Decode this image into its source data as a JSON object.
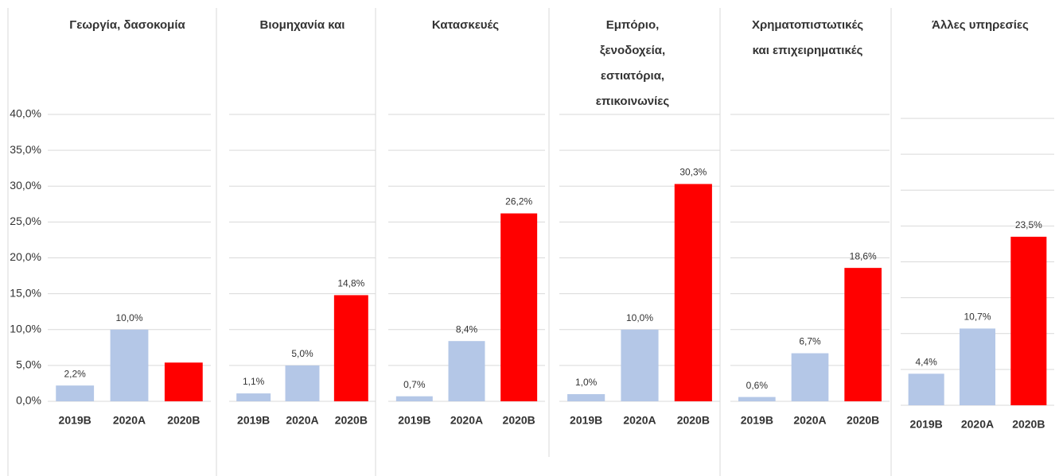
{
  "chart_data": [
    {
      "type": "bar",
      "title": [
        "Γεωργία, δασοκομία"
      ],
      "categories": [
        "2019B",
        "2020A",
        "2020B"
      ],
      "values": [
        2.2,
        10.0,
        5.4
      ],
      "value_labels": [
        "2,2%",
        "10,0%",
        null
      ],
      "colors": [
        "#b4c7e7",
        "#b4c7e7",
        "#ff0000"
      ],
      "ylim": [
        0,
        40
      ],
      "yticks": [
        {
          "value": 0,
          "label": "0,0%"
        },
        {
          "value": 5,
          "label": "5,0%"
        },
        {
          "value": 10,
          "label": "10,0%"
        },
        {
          "value": 15,
          "label": "15,0%"
        },
        {
          "value": 20,
          "label": "20,0%"
        },
        {
          "value": 25,
          "label": "25,0%"
        },
        {
          "value": 30,
          "label": "30,0%"
        },
        {
          "value": 35,
          "label": "35,0%"
        },
        {
          "value": 40,
          "label": "40,0%"
        }
      ],
      "grid": true
    },
    {
      "type": "bar",
      "title": [
        "Βιομηχανία και"
      ],
      "categories": [
        "2019B",
        "2020A",
        "2020B"
      ],
      "values": [
        1.1,
        5.0,
        14.8
      ],
      "value_labels": [
        "1,1%",
        "5,0%",
        "14,8%"
      ],
      "colors": [
        "#b4c7e7",
        "#b4c7e7",
        "#ff0000"
      ],
      "ylim": [
        0,
        40
      ],
      "yticks": [
        0,
        5,
        10,
        15,
        20,
        25,
        30,
        35,
        40
      ],
      "grid": true
    },
    {
      "type": "bar",
      "title": [
        "Κατασκευές"
      ],
      "categories": [
        "2019B",
        "2020A",
        "2020B"
      ],
      "values": [
        0.7,
        8.4,
        26.2
      ],
      "value_labels": [
        "0,7%",
        "8,4%",
        "26,2%"
      ],
      "colors": [
        "#b4c7e7",
        "#b4c7e7",
        "#ff0000"
      ],
      "ylim": [
        0,
        40
      ],
      "yticks": [
        0,
        5,
        10,
        15,
        20,
        25,
        30,
        35,
        40
      ],
      "grid": true
    },
    {
      "type": "bar",
      "title": [
        "Εμπόριο,",
        "ξενοδοχεία,",
        "εστιατόρια,",
        "επικοινωνίες"
      ],
      "categories": [
        "2019B",
        "2020A",
        "2020B"
      ],
      "values": [
        1.0,
        10.0,
        30.3
      ],
      "value_labels": [
        "1,0%",
        "10,0%",
        "30,3%"
      ],
      "colors": [
        "#b4c7e7",
        "#b4c7e7",
        "#ff0000"
      ],
      "ylim": [
        0,
        40
      ],
      "yticks": [
        0,
        5,
        10,
        15,
        20,
        25,
        30,
        35,
        40
      ],
      "grid": true
    },
    {
      "type": "bar",
      "title": [
        "Χρηματοπιστωτικές",
        "και επιχειρηματικές"
      ],
      "categories": [
        "2019B",
        "2020A",
        "2020B"
      ],
      "values": [
        0.6,
        6.7,
        18.6
      ],
      "value_labels": [
        "0,6%",
        "6,7%",
        "18,6%"
      ],
      "colors": [
        "#b4c7e7",
        "#b4c7e7",
        "#ff0000"
      ],
      "ylim": [
        0,
        40
      ],
      "yticks": [
        0,
        5,
        10,
        15,
        20,
        25,
        30,
        35,
        40
      ],
      "grid": true
    },
    {
      "type": "bar",
      "title": [
        "Άλλες υπηρεσίες"
      ],
      "categories": [
        "2019B",
        "2020A",
        "2020B"
      ],
      "values": [
        4.4,
        10.7,
        23.5
      ],
      "value_labels": [
        "4,4%",
        "10,7%",
        "23,5%"
      ],
      "colors": [
        "#b4c7e7",
        "#b4c7e7",
        "#ff0000"
      ],
      "ylim": [
        0,
        40
      ],
      "yticks": [
        0,
        5,
        10,
        15,
        20,
        25,
        30,
        35,
        40
      ],
      "grid": true
    }
  ]
}
